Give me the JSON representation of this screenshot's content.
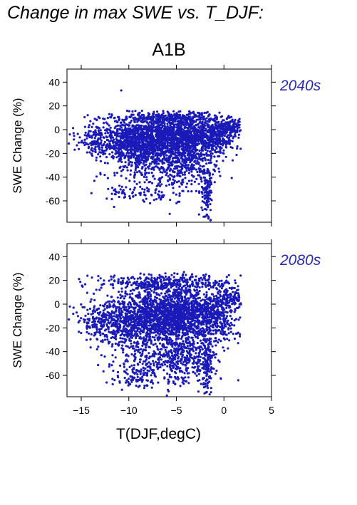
{
  "header": {
    "title": "Change in max SWE vs. T_DJF:",
    "scenario": "A1B"
  },
  "colors": {
    "points": "#1a1ab8",
    "period_label": "#2a2ab0",
    "axis": "#000000"
  },
  "chart_data": [
    {
      "type": "scatter",
      "period_label": "2040s",
      "xlabel": "",
      "ylabel": "SWE Change (%)",
      "xlim": [
        -16.5,
        5
      ],
      "ylim": [
        -78,
        51
      ],
      "xticks": [
        -15,
        -10,
        -5,
        0,
        5
      ],
      "yticks": [
        -60,
        -40,
        -20,
        0,
        20,
        40
      ],
      "tick_labels_x": [],
      "tick_labels_y": [
        "-60",
        "-40",
        "-20",
        "0",
        "20",
        "40"
      ],
      "color": "#1a1ab8",
      "cloud": [
        {
          "x": -7.5,
          "y": -8,
          "sx": 2.8,
          "sy": 9,
          "n": 1100
        },
        {
          "x": -4,
          "y": -6,
          "sx": 2.2,
          "sy": 10,
          "n": 800
        },
        {
          "x": -10,
          "y": -12,
          "sx": 1.5,
          "sy": 10,
          "n": 320
        },
        {
          "x": -6.5,
          "y": -30,
          "sx": 2.5,
          "sy": 10,
          "n": 280
        },
        {
          "x": -3.5,
          "y": -32,
          "sx": 1.3,
          "sy": 9,
          "n": 160
        },
        {
          "x": -1.8,
          "y": -50,
          "sx": 0.3,
          "sy": 13,
          "n": 130
        },
        {
          "x": -1,
          "y": -6,
          "sx": 1.1,
          "sy": 6,
          "n": 220
        },
        {
          "x": 0.5,
          "y": 2,
          "sx": 0.7,
          "sy": 3,
          "n": 110
        },
        {
          "x": -13.5,
          "y": -10,
          "sx": 1,
          "sy": 6,
          "n": 110
        },
        {
          "x": -6,
          "y": 10,
          "sx": 3.3,
          "sy": 2,
          "n": 260
        },
        {
          "x": -10.5,
          "y": -52,
          "sx": 1,
          "sy": 4,
          "n": 40
        },
        {
          "x": -7.5,
          "y": -55,
          "sx": 1,
          "sy": 4,
          "n": 40
        }
      ],
      "clip_y": [
        -78,
        16
      ],
      "extra_points": [
        {
          "x": -10.8,
          "y": 33
        },
        {
          "x": -15.8,
          "y": -3
        },
        {
          "x": -16.2,
          "y": -4
        },
        {
          "x": 1.5,
          "y": 6
        },
        {
          "x": 1.2,
          "y": 5
        },
        {
          "x": -5.7,
          "y": -71
        },
        {
          "x": -1.4,
          "y": -76
        },
        {
          "x": -1.6,
          "y": -74
        },
        {
          "x": -12.5,
          "y": -28
        }
      ]
    },
    {
      "type": "scatter",
      "period_label": "2080s",
      "xlabel": "T(DJF,degC)",
      "ylabel": "SWE Change (%)",
      "xlim": [
        -16.5,
        5
      ],
      "ylim": [
        -78,
        51
      ],
      "xticks": [
        -15,
        -10,
        -5,
        0,
        5
      ],
      "yticks": [
        -60,
        -40,
        -20,
        0,
        20,
        40
      ],
      "tick_labels_x": [
        "−15",
        "−10",
        "−5",
        "0",
        "5"
      ],
      "tick_labels_y": [
        "-60",
        "-40",
        "-20",
        "0",
        "20",
        "40"
      ],
      "color": "#1a1ab8",
      "cloud": [
        {
          "x": -7,
          "y": -10,
          "sx": 2.8,
          "sy": 13,
          "n": 1100
        },
        {
          "x": -4,
          "y": -8,
          "sx": 2.2,
          "sy": 13,
          "n": 900
        },
        {
          "x": -10,
          "y": -15,
          "sx": 1.5,
          "sy": 12,
          "n": 320
        },
        {
          "x": -6.5,
          "y": -45,
          "sx": 2.5,
          "sy": 10,
          "n": 320
        },
        {
          "x": -3.5,
          "y": -45,
          "sx": 1.3,
          "sy": 10,
          "n": 180
        },
        {
          "x": -1.8,
          "y": -55,
          "sx": 0.3,
          "sy": 12,
          "n": 110
        },
        {
          "x": -0.8,
          "y": -10,
          "sx": 1,
          "sy": 10,
          "n": 240
        },
        {
          "x": 0.6,
          "y": 5,
          "sx": 0.7,
          "sy": 4,
          "n": 110
        },
        {
          "x": -13.5,
          "y": -15,
          "sx": 1,
          "sy": 8,
          "n": 120
        },
        {
          "x": -6,
          "y": 18,
          "sx": 3.3,
          "sy": 3,
          "n": 300
        },
        {
          "x": -9,
          "y": -62,
          "sx": 1.5,
          "sy": 5,
          "n": 90
        }
      ],
      "clip_y": [
        -78,
        26
      ],
      "extra_points": [
        {
          "x": -15.8,
          "y": -3
        },
        {
          "x": -16.2,
          "y": -2
        },
        {
          "x": 1.5,
          "y": 12
        },
        {
          "x": 1.2,
          "y": 10
        },
        {
          "x": -1.5,
          "y": -76
        },
        {
          "x": -1.8,
          "y": -74
        },
        {
          "x": -6,
          "y": -77
        },
        {
          "x": -12.5,
          "y": -30
        },
        {
          "x": -4.2,
          "y": 27
        }
      ]
    }
  ]
}
